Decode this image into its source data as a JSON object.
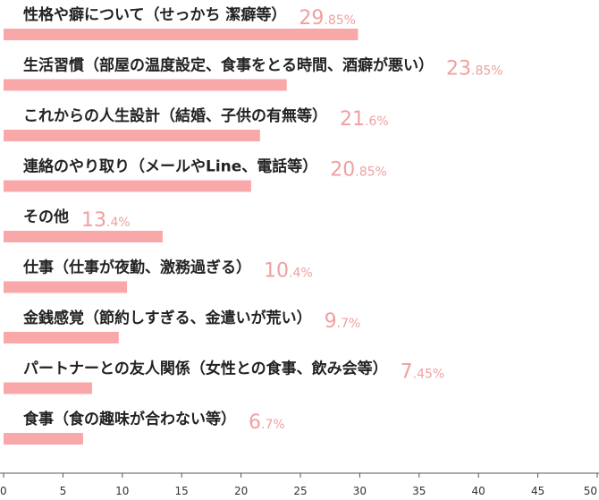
{
  "chart_data": {
    "type": "bar",
    "orientation": "horizontal",
    "title": "",
    "xlabel": "",
    "ylabel": "",
    "xlim": [
      0,
      50
    ],
    "x_ticks": [
      0,
      5,
      10,
      15,
      20,
      25,
      30,
      35,
      40,
      45,
      50
    ],
    "grid": false,
    "bar_color": "#f8a8a8",
    "value_color": "#f0a0a0",
    "value_suffix": "%",
    "categories": [
      "性格や癖について（せっかち 潔癖等）",
      "生活習慣（部屋の温度設定、食事をとる時間、酒癖が悪い）",
      "これからの人生設計（結婚、子供の有無等）",
      "連絡のやり取り（メールやLine、電話等）",
      "その他",
      "仕事（仕事が夜勤、激務過ぎる）",
      "金銭感覚（節約しすぎる、金遣いが荒い）",
      "パートナーとの友人関係（女性との食事、飲み会等）",
      "食事（食の趣味が合わない等）"
    ],
    "values": [
      29.85,
      23.85,
      21.6,
      20.85,
      13.4,
      10.4,
      9.7,
      7.45,
      6.7
    ]
  }
}
